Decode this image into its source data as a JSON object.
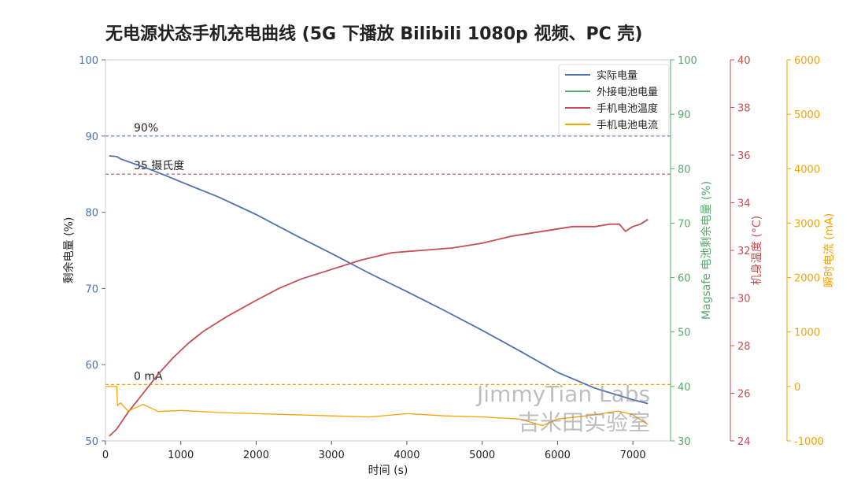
{
  "chart_data": {
    "type": "line",
    "title": "无电源状态手机充电曲线 (5G 下播放 Bilibili 1080p 视频、PC 壳)",
    "xlabel": "时间 (s)",
    "xlim": [
      0,
      7500
    ],
    "x_ticks": [
      0,
      1000,
      2000,
      3000,
      4000,
      5000,
      6000,
      7000
    ],
    "axes": {
      "battery": {
        "label": "剩余电量 (%)",
        "lim": [
          50,
          100
        ],
        "ticks": [
          50,
          60,
          70,
          80,
          90,
          100
        ],
        "color": "#4c72b0"
      },
      "magsafe": {
        "label": "Magsafe 电池剩余电量 (%)",
        "lim": [
          30,
          100
        ],
        "ticks": [
          30,
          40,
          50,
          60,
          70,
          80,
          90,
          100
        ],
        "color": "#55a868"
      },
      "temp": {
        "label": "机身温度 (°C)",
        "lim": [
          24,
          40
        ],
        "ticks": [
          24,
          26,
          28,
          30,
          32,
          34,
          36,
          38,
          40
        ],
        "color": "#c44e52"
      },
      "current": {
        "label": "瞬时电流 (mA)",
        "lim": [
          -1000,
          6000
        ],
        "ticks": [
          -1000,
          0,
          1000,
          2000,
          3000,
          4000,
          5000,
          6000
        ],
        "color": "#f5a300"
      }
    },
    "reference_lines": [
      {
        "axis": "battery",
        "value": 90,
        "label": "90%",
        "color": "#4c72b0"
      },
      {
        "axis": "battery",
        "value": 85,
        "label": "35 摄氏度",
        "color": "#c44e52"
      },
      {
        "axis": "battery",
        "value": 57.4,
        "label": "0 mA",
        "color": "#f5a300"
      }
    ],
    "series": [
      {
        "name": "实际电量",
        "axis": "battery",
        "color": "#4c72b0",
        "x": [
          50,
          150,
          200,
          400,
          600,
          800,
          1000,
          1500,
          2000,
          2500,
          3000,
          3500,
          4000,
          4500,
          5000,
          5500,
          6000,
          6500,
          7000,
          7200
        ],
        "y": [
          87.4,
          87.3,
          87.0,
          86.3,
          85.6,
          84.8,
          84.0,
          82.0,
          79.7,
          77.1,
          74.6,
          72.0,
          69.6,
          67.1,
          64.5,
          61.8,
          59.0,
          56.9,
          55.4,
          54.9
        ]
      },
      {
        "name": "外接电池电量",
        "axis": "magsafe",
        "color": "#55a868",
        "x": [],
        "y": []
      },
      {
        "name": "手机电池温度",
        "axis": "temp",
        "color": "#c44e52",
        "x": [
          50,
          150,
          300,
          500,
          700,
          900,
          1100,
          1300,
          1600,
          2000,
          2300,
          2600,
          3000,
          3400,
          3800,
          4200,
          4600,
          5000,
          5400,
          5800,
          6200,
          6500,
          6700,
          6820,
          6900,
          7000,
          7100,
          7200
        ],
        "y": [
          24.2,
          24.5,
          25.2,
          26.0,
          26.8,
          27.5,
          28.1,
          28.6,
          29.2,
          29.9,
          30.4,
          30.8,
          31.2,
          31.6,
          31.9,
          32.0,
          32.1,
          32.3,
          32.6,
          32.8,
          33.0,
          33.0,
          33.1,
          33.1,
          32.8,
          33.0,
          33.1,
          33.3
        ]
      },
      {
        "name": "手机电池电流",
        "axis": "current",
        "color": "#f5a300",
        "x": [
          0,
          150,
          160,
          200,
          300,
          500,
          700,
          1000,
          1500,
          2000,
          2500,
          3000,
          3500,
          4000,
          4500,
          5000,
          5500,
          5800,
          6000,
          6500,
          6800,
          7000,
          7200
        ],
        "y": [
          0,
          0,
          -350,
          -300,
          -450,
          -330,
          -460,
          -440,
          -480,
          -500,
          -520,
          -540,
          -560,
          -500,
          -540,
          -560,
          -600,
          -720,
          -600,
          -520,
          -450,
          -520,
          -700
        ]
      }
    ],
    "legend": {
      "position": "top-right",
      "entries": [
        "实际电量",
        "外接电池电量",
        "手机电池温度",
        "手机电池电流"
      ]
    },
    "watermark": [
      "JimmyTian Labs",
      "吉米田实验室"
    ]
  }
}
